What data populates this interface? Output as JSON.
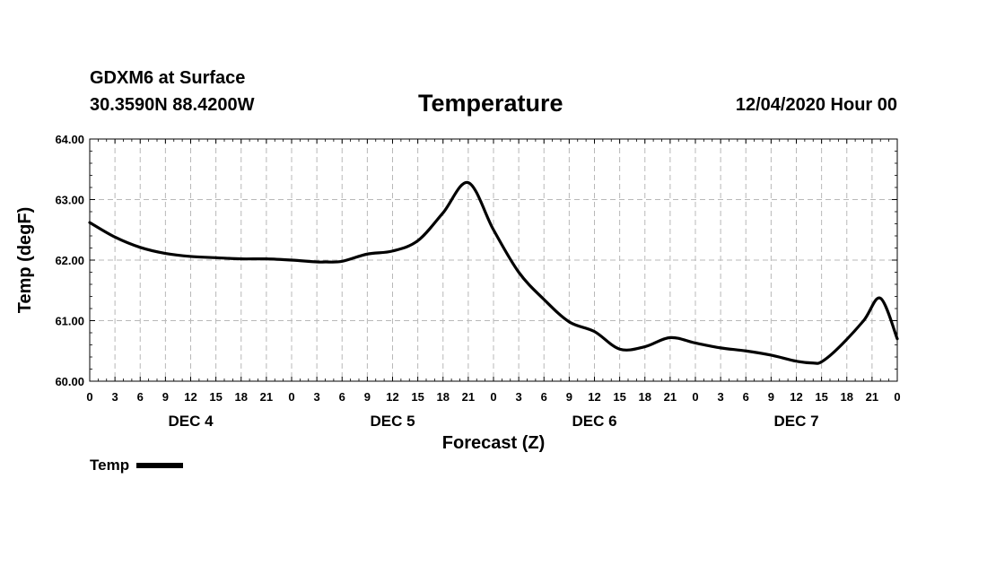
{
  "header": {
    "station": "GDXM6 at Surface",
    "coords": "30.3590N 88.4200W",
    "run": "12/04/2020 Hour 00"
  },
  "chart_data": {
    "type": "line",
    "title": "Temperature",
    "xlabel": "Forecast (Z)",
    "ylabel": "Temp (degF)",
    "xlim": [
      0,
      96
    ],
    "ylim": [
      60.0,
      64.0
    ],
    "grid": true,
    "y_ticks": [
      "60.00",
      "61.00",
      "62.00",
      "63.00",
      "64.00"
    ],
    "y_tick_values": [
      60,
      61,
      62,
      63,
      64
    ],
    "x_tick_labels": [
      "0",
      "3",
      "6",
      "9",
      "12",
      "15",
      "18",
      "21",
      "0",
      "3",
      "6",
      "9",
      "12",
      "15",
      "18",
      "21",
      "0",
      "3",
      "6",
      "9",
      "12",
      "15",
      "18",
      "21",
      "0",
      "3",
      "6",
      "9",
      "12",
      "15",
      "18",
      "21",
      "0"
    ],
    "day_labels": [
      {
        "label": "DEC 4",
        "hour": 12
      },
      {
        "label": "DEC 5",
        "hour": 36
      },
      {
        "label": "DEC 6",
        "hour": 60
      },
      {
        "label": "DEC 7",
        "hour": 84
      }
    ],
    "legend": [
      {
        "name": "Temp",
        "color": "#000000"
      }
    ],
    "series": [
      {
        "name": "Temp",
        "color": "#000000",
        "x": [
          0,
          3,
          6,
          9,
          12,
          15,
          18,
          21,
          24,
          27,
          28,
          30,
          33,
          36,
          39,
          42,
          45,
          48,
          51,
          54,
          57,
          60,
          63,
          66,
          69,
          72,
          75,
          78,
          81,
          84,
          86,
          87,
          89,
          92,
          94,
          96
        ],
        "y": [
          62.62,
          62.38,
          62.21,
          62.11,
          62.06,
          62.04,
          62.02,
          62.02,
          62.0,
          61.97,
          61.97,
          61.98,
          62.1,
          62.15,
          62.32,
          62.78,
          63.28,
          62.5,
          61.8,
          61.35,
          60.98,
          60.82,
          60.53,
          60.57,
          60.72,
          60.63,
          60.55,
          60.5,
          60.43,
          60.33,
          60.3,
          60.32,
          60.55,
          61.0,
          61.37,
          60.7
        ]
      }
    ]
  }
}
